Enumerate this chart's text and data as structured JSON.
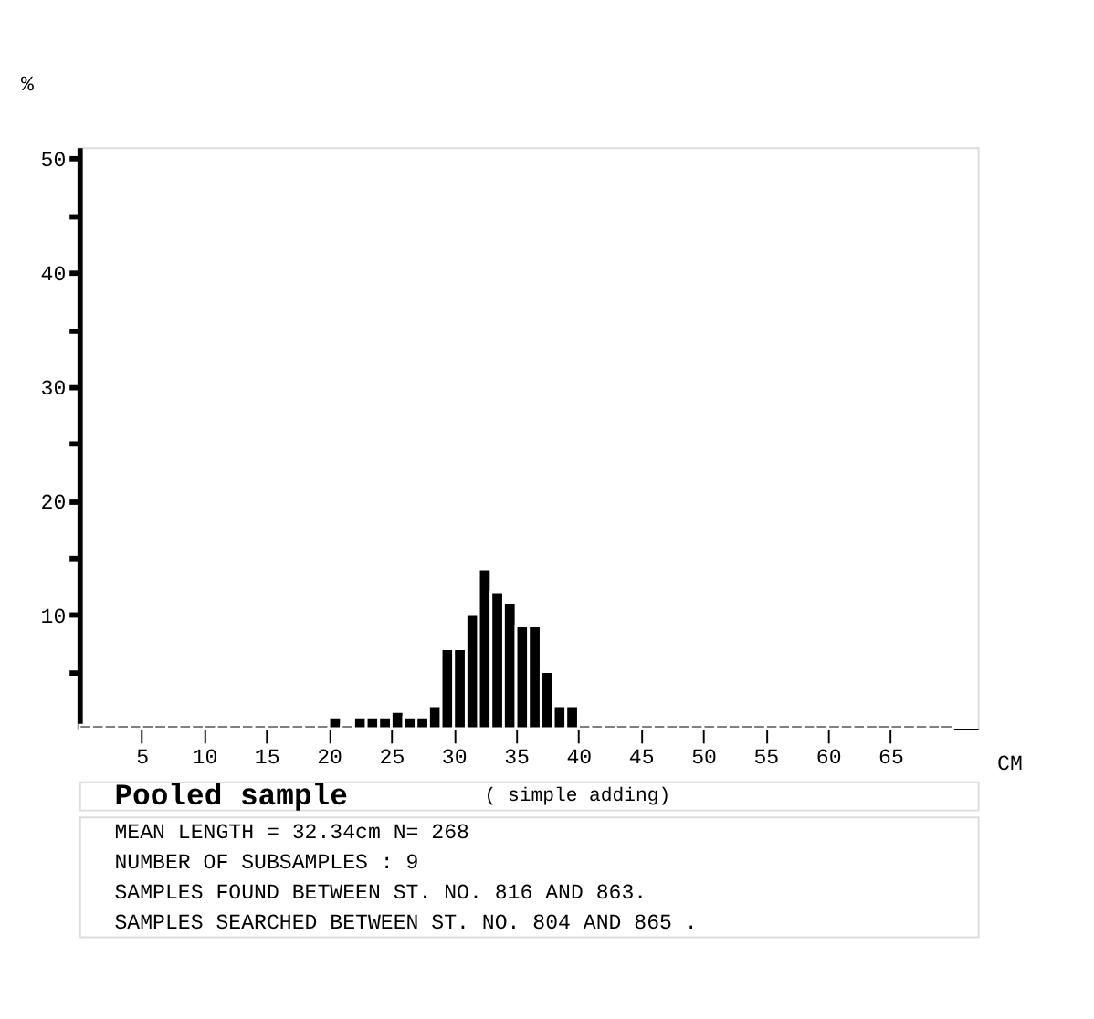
{
  "chart_data": {
    "type": "histogram",
    "title": "Pooled sample",
    "subtitle": "( simple adding)",
    "xlabel": "CM",
    "ylabel": "%",
    "bins": [
      0,
      1,
      2,
      3,
      4,
      5,
      6,
      7,
      8,
      9,
      10,
      11,
      12,
      13,
      14,
      15,
      16,
      17,
      18,
      19,
      20,
      21,
      22,
      23,
      24,
      25,
      26,
      27,
      28,
      29,
      30,
      31,
      32,
      33,
      34,
      35,
      36,
      37,
      38,
      39,
      40,
      41,
      42,
      43,
      44,
      45,
      46,
      47,
      48,
      49,
      50,
      51,
      52,
      53,
      54,
      55,
      56,
      57,
      58,
      59,
      60,
      61,
      62,
      63,
      64,
      65,
      66,
      67,
      68,
      69,
      70
    ],
    "values": [
      0.3,
      0.3,
      0.3,
      0.3,
      0.3,
      0.3,
      0.3,
      0.3,
      0.3,
      0.3,
      0.3,
      0.3,
      0.3,
      0.3,
      0.3,
      0.3,
      0.3,
      0.3,
      0.3,
      0.3,
      1,
      0.3,
      1,
      1,
      1,
      1.5,
      1,
      1,
      2,
      7,
      7,
      10,
      14,
      12,
      11,
      9,
      9,
      5,
      2,
      2,
      0.3,
      0.3,
      0.3,
      0.3,
      0.3,
      0.3,
      0.3,
      0.3,
      0.3,
      0.3,
      0.3,
      0.3,
      0.3,
      0.3,
      0.3,
      0.3,
      0.3,
      0.3,
      0.3,
      0.3,
      0.3,
      0.3,
      0.3,
      0.3,
      0.3,
      0.3,
      0.3,
      0.3,
      0.3,
      0.3
    ],
    "color": "#000000",
    "xlim": [
      0,
      72
    ],
    "xticks": [
      5,
      10,
      15,
      20,
      25,
      30,
      35,
      40,
      45,
      50,
      55,
      60,
      65
    ],
    "ylim": [
      0,
      51
    ],
    "yticks": [
      {
        "value": 5,
        "label": null
      },
      10,
      {
        "value": 15,
        "label": null
      },
      20,
      {
        "value": 25,
        "label": null
      },
      30,
      {
        "value": 35,
        "label": null
      },
      40,
      {
        "value": 45,
        "label": null
      },
      50
    ],
    "grid": false,
    "annotations": [
      "MEAN LENGTH = 32.34cm  N=  268",
      "NUMBER OF SUBSAMPLES :  9",
      "SAMPLES FOUND BETWEEN ST. NO. 816 AND  863.",
      "SAMPLES SEARCHED BETWEEN ST. NO. 804 AND  865 ."
    ]
  }
}
